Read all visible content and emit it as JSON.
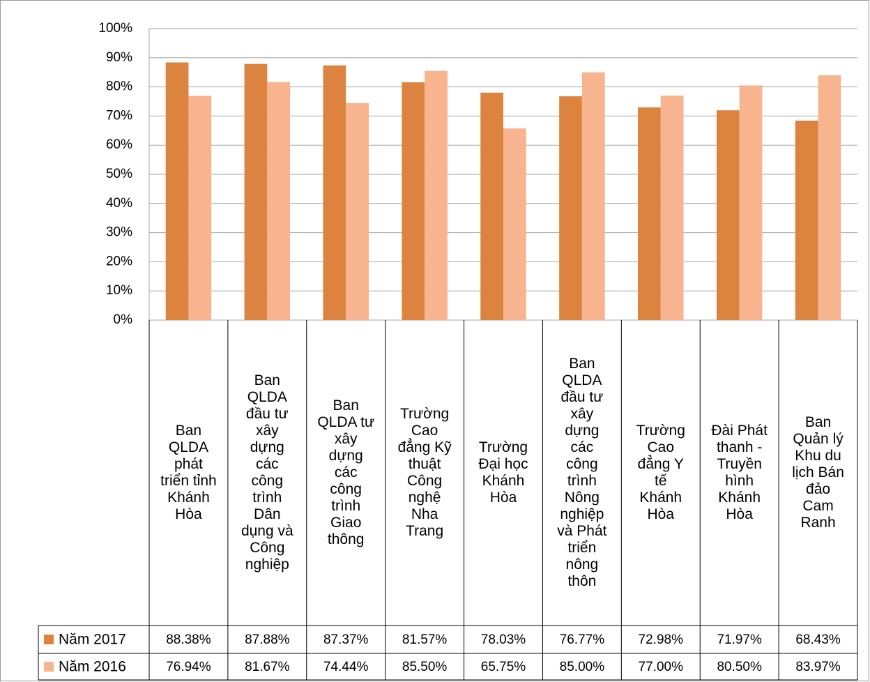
{
  "chart_data": {
    "type": "bar",
    "categories": [
      "Ban QLDA phát triển tỉnh Khánh Hòa",
      "Ban QLDA đầu tư xây dựng các công trình Dân dụng và Công nghiệp",
      "Ban QLDA tư xây dựng các công trình Giao thông",
      "Trường Cao đẳng Kỹ thuật Công nghệ Nha Trang",
      "Trường Đại học Khánh Hòa",
      "Ban QLDA đầu tư xây dựng các công trình Nông nghiệp và Phát triển nông thôn",
      "Trường Cao đẳng Y tế Khánh Hòa",
      "Đài Phát thanh - Truyền hình Khánh Hòa",
      "Ban Quản lý Khu du lịch Bán đảo Cam Ranh"
    ],
    "series": [
      {
        "name": "Năm 2017",
        "color": "#dc843f",
        "values": [
          88.38,
          87.88,
          87.37,
          81.57,
          78.03,
          76.77,
          72.98,
          71.97,
          68.43
        ],
        "value_labels": [
          "88.38%",
          "87.88%",
          "87.37%",
          "81.57%",
          "78.03%",
          "76.77%",
          "72.98%",
          "71.97%",
          "68.43%"
        ]
      },
      {
        "name": "Năm 2016",
        "color": "#f8b48e",
        "values": [
          76.94,
          81.67,
          74.44,
          85.5,
          65.75,
          85.0,
          77.0,
          80.5,
          83.97
        ],
        "value_labels": [
          "76.94%",
          "81.67%",
          "74.44%",
          "85.50%",
          "65.75%",
          "85.00%",
          "77.00%",
          "80.50%",
          "83.97%"
        ]
      }
    ],
    "ylim": [
      0,
      100
    ],
    "yticks": [
      {
        "value": 0,
        "label": "0%"
      },
      {
        "value": 10,
        "label": "10%"
      },
      {
        "value": 20,
        "label": "20%"
      },
      {
        "value": 30,
        "label": "30%"
      },
      {
        "value": 40,
        "label": "40%"
      },
      {
        "value": 50,
        "label": "50%"
      },
      {
        "value": 60,
        "label": "60%"
      },
      {
        "value": 70,
        "label": "70%"
      },
      {
        "value": 80,
        "label": "80%"
      },
      {
        "value": 90,
        "label": "90%"
      },
      {
        "value": 100,
        "label": "100%"
      }
    ],
    "grid": true
  }
}
